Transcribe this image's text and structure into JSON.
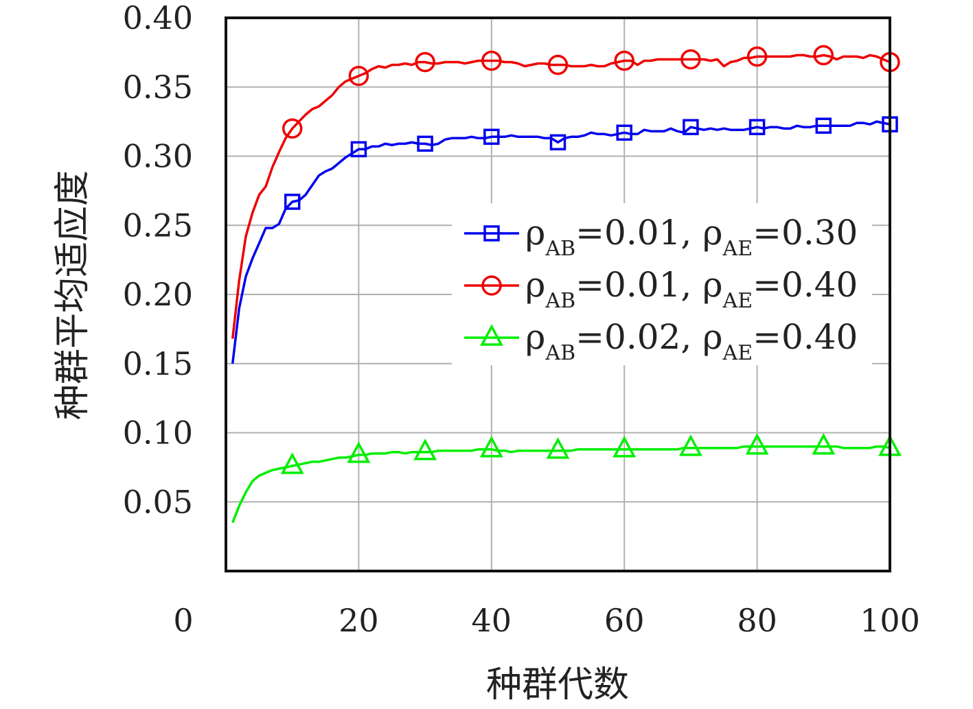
{
  "chart_data": {
    "type": "line",
    "title": "",
    "xlabel": "种群代数",
    "ylabel": "种群平均适应度",
    "xlim": [
      0,
      100
    ],
    "ylim": [
      0,
      0.4
    ],
    "x_ticks": [
      0,
      20,
      40,
      60,
      80,
      100
    ],
    "x_tick_labels": [
      "0",
      "20",
      "40",
      "60",
      "80",
      "100"
    ],
    "y_ticks": [
      0.05,
      0.1,
      0.15,
      0.2,
      0.25,
      0.3,
      0.35,
      0.4
    ],
    "y_tick_labels": [
      "0.05",
      "0.10",
      "0.15",
      "0.20",
      "0.25",
      "0.30",
      "0.35",
      "0.40"
    ],
    "grid": true,
    "legend_position": "right-middle",
    "series": [
      {
        "name": "ρAB=0.01, ρAE=0.30",
        "legend": {
          "sym1": "ρ",
          "sub1": "AB",
          "val1": "=0.01, ",
          "sym2": "ρ",
          "sub2": "AE",
          "val2": "=0.30"
        },
        "color": "#0000ee",
        "marker": "square",
        "x": [
          1,
          2,
          3,
          4,
          5,
          6,
          7,
          8,
          9,
          10,
          11,
          12,
          13,
          14,
          15,
          16,
          17,
          18,
          19,
          20,
          21,
          22,
          23,
          24,
          25,
          26,
          27,
          28,
          29,
          30,
          31,
          32,
          33,
          34,
          35,
          36,
          37,
          38,
          39,
          40,
          41,
          42,
          43,
          44,
          45,
          46,
          47,
          48,
          49,
          50,
          51,
          52,
          53,
          54,
          55,
          56,
          57,
          58,
          59,
          60,
          61,
          62,
          63,
          64,
          65,
          66,
          67,
          68,
          69,
          70,
          71,
          72,
          73,
          74,
          75,
          76,
          77,
          78,
          79,
          80,
          81,
          82,
          83,
          84,
          85,
          86,
          87,
          88,
          89,
          90,
          91,
          92,
          93,
          94,
          95,
          96,
          97,
          98,
          99,
          100
        ],
        "y": [
          0.15,
          0.19,
          0.213,
          0.226,
          0.237,
          0.248,
          0.248,
          0.251,
          0.262,
          0.267,
          0.268,
          0.272,
          0.279,
          0.286,
          0.289,
          0.291,
          0.295,
          0.299,
          0.302,
          0.305,
          0.305,
          0.307,
          0.307,
          0.309,
          0.308,
          0.309,
          0.309,
          0.31,
          0.309,
          0.309,
          0.308,
          0.309,
          0.312,
          0.313,
          0.313,
          0.313,
          0.314,
          0.313,
          0.313,
          0.314,
          0.314,
          0.314,
          0.315,
          0.314,
          0.314,
          0.314,
          0.314,
          0.313,
          0.313,
          0.31,
          0.313,
          0.314,
          0.314,
          0.315,
          0.317,
          0.316,
          0.316,
          0.315,
          0.316,
          0.317,
          0.316,
          0.316,
          0.319,
          0.318,
          0.318,
          0.318,
          0.32,
          0.318,
          0.317,
          0.321,
          0.32,
          0.319,
          0.32,
          0.319,
          0.32,
          0.319,
          0.319,
          0.319,
          0.32,
          0.321,
          0.32,
          0.321,
          0.321,
          0.32,
          0.32,
          0.322,
          0.321,
          0.321,
          0.322,
          0.322,
          0.322,
          0.322,
          0.322,
          0.322,
          0.324,
          0.324,
          0.323,
          0.325,
          0.324,
          0.323
        ],
        "marker_x": [
          10,
          20,
          30,
          40,
          50,
          60,
          70,
          80,
          90,
          100
        ]
      },
      {
        "name": "ρAB=0.01, ρAE=0.40",
        "legend": {
          "sym1": "ρ",
          "sub1": "AB",
          "val1": "=0.01, ",
          "sym2": "ρ",
          "sub2": "AE",
          "val2": "=0.40"
        },
        "color": "#ee0000",
        "marker": "circle",
        "x": [
          1,
          2,
          3,
          4,
          5,
          6,
          7,
          8,
          9,
          10,
          11,
          12,
          13,
          14,
          15,
          16,
          17,
          18,
          19,
          20,
          21,
          22,
          23,
          24,
          25,
          26,
          27,
          28,
          29,
          30,
          31,
          32,
          33,
          34,
          35,
          36,
          37,
          38,
          39,
          40,
          41,
          42,
          43,
          44,
          45,
          46,
          47,
          48,
          49,
          50,
          51,
          52,
          53,
          54,
          55,
          56,
          57,
          58,
          59,
          60,
          61,
          62,
          63,
          64,
          65,
          66,
          67,
          68,
          69,
          70,
          71,
          72,
          73,
          74,
          75,
          76,
          77,
          78,
          79,
          80,
          81,
          82,
          83,
          84,
          85,
          86,
          87,
          88,
          89,
          90,
          91,
          92,
          93,
          94,
          95,
          96,
          97,
          98,
          99,
          100
        ],
        "y": [
          0.168,
          0.21,
          0.242,
          0.259,
          0.272,
          0.278,
          0.292,
          0.303,
          0.313,
          0.32,
          0.325,
          0.33,
          0.334,
          0.336,
          0.34,
          0.344,
          0.35,
          0.354,
          0.356,
          0.358,
          0.36,
          0.363,
          0.365,
          0.364,
          0.366,
          0.366,
          0.367,
          0.366,
          0.368,
          0.368,
          0.367,
          0.367,
          0.368,
          0.368,
          0.368,
          0.367,
          0.368,
          0.369,
          0.369,
          0.369,
          0.369,
          0.368,
          0.368,
          0.367,
          0.365,
          0.366,
          0.367,
          0.367,
          0.366,
          0.366,
          0.366,
          0.365,
          0.365,
          0.365,
          0.366,
          0.365,
          0.365,
          0.367,
          0.368,
          0.369,
          0.369,
          0.366,
          0.369,
          0.369,
          0.37,
          0.37,
          0.37,
          0.37,
          0.37,
          0.37,
          0.37,
          0.37,
          0.369,
          0.37,
          0.365,
          0.368,
          0.369,
          0.371,
          0.371,
          0.372,
          0.372,
          0.372,
          0.372,
          0.372,
          0.372,
          0.373,
          0.373,
          0.372,
          0.372,
          0.373,
          0.372,
          0.37,
          0.372,
          0.372,
          0.372,
          0.371,
          0.373,
          0.372,
          0.37,
          0.368
        ],
        "marker_x": [
          10,
          20,
          30,
          40,
          50,
          60,
          70,
          80,
          90,
          100
        ]
      },
      {
        "name": "ρAB=0.02, ρAE=0.40",
        "legend": {
          "sym1": "ρ",
          "sub1": "AB",
          "val1": "=0.02, ",
          "sym2": "ρ",
          "sub2": "AE",
          "val2": "=0.40"
        },
        "color": "#00ee00",
        "marker": "triangle",
        "x": [
          1,
          2,
          3,
          4,
          5,
          6,
          7,
          8,
          9,
          10,
          11,
          12,
          13,
          14,
          15,
          16,
          17,
          18,
          19,
          20,
          21,
          22,
          23,
          24,
          25,
          26,
          27,
          28,
          29,
          30,
          31,
          32,
          33,
          34,
          35,
          36,
          37,
          38,
          39,
          40,
          41,
          42,
          43,
          44,
          45,
          46,
          47,
          48,
          49,
          50,
          51,
          52,
          53,
          54,
          55,
          56,
          57,
          58,
          59,
          60,
          61,
          62,
          63,
          64,
          65,
          66,
          67,
          68,
          69,
          70,
          71,
          72,
          73,
          74,
          75,
          76,
          77,
          78,
          79,
          80,
          81,
          82,
          83,
          84,
          85,
          86,
          87,
          88,
          89,
          90,
          91,
          92,
          93,
          94,
          95,
          96,
          97,
          98,
          99,
          100
        ],
        "y": [
          0.035,
          0.047,
          0.057,
          0.065,
          0.069,
          0.071,
          0.073,
          0.074,
          0.075,
          0.076,
          0.077,
          0.078,
          0.079,
          0.079,
          0.08,
          0.081,
          0.082,
          0.082,
          0.083,
          0.084,
          0.084,
          0.085,
          0.085,
          0.085,
          0.086,
          0.086,
          0.085,
          0.086,
          0.086,
          0.086,
          0.086,
          0.087,
          0.087,
          0.087,
          0.087,
          0.087,
          0.087,
          0.088,
          0.088,
          0.088,
          0.087,
          0.087,
          0.086,
          0.087,
          0.087,
          0.087,
          0.087,
          0.087,
          0.087,
          0.087,
          0.087,
          0.087,
          0.088,
          0.088,
          0.088,
          0.088,
          0.088,
          0.088,
          0.088,
          0.088,
          0.088,
          0.088,
          0.088,
          0.088,
          0.088,
          0.088,
          0.088,
          0.088,
          0.089,
          0.089,
          0.089,
          0.089,
          0.089,
          0.089,
          0.089,
          0.089,
          0.089,
          0.09,
          0.09,
          0.09,
          0.09,
          0.09,
          0.09,
          0.09,
          0.09,
          0.09,
          0.09,
          0.09,
          0.09,
          0.09,
          0.09,
          0.09,
          0.089,
          0.089,
          0.089,
          0.089,
          0.089,
          0.09,
          0.09,
          0.089
        ],
        "marker_x": [
          10,
          20,
          30,
          40,
          50,
          60,
          70,
          80,
          90,
          100
        ]
      }
    ]
  }
}
